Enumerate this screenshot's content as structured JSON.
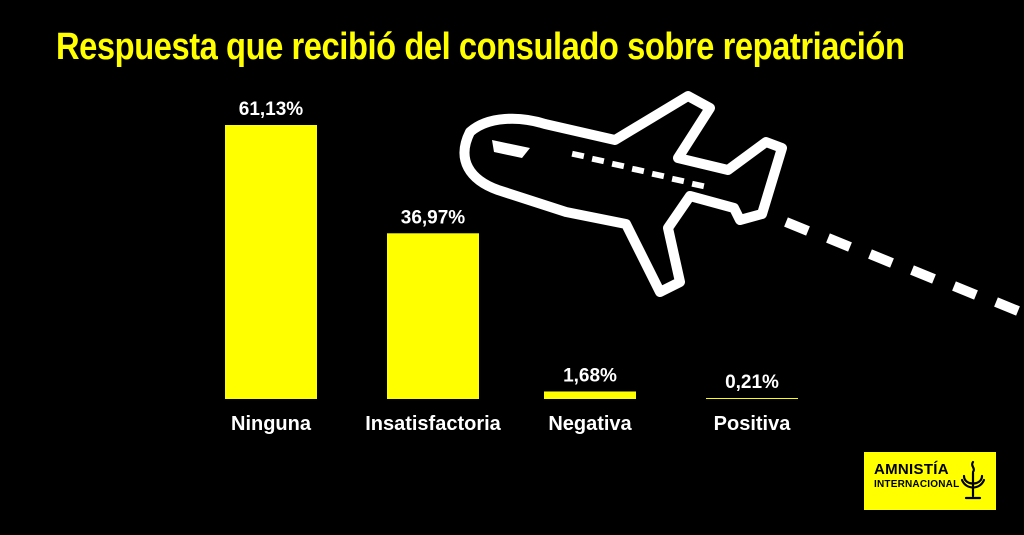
{
  "title": "Respuesta que recibió del consulado sobre repatriación",
  "colors": {
    "background": "#000000",
    "accent": "#FFFF00",
    "text": "#FFFFFF"
  },
  "icons": {
    "illustration": "airplane-icon",
    "logo_symbol": "candle-icon"
  },
  "chart_data": {
    "type": "bar",
    "title": "Respuesta que recibió del consulado sobre repatriación",
    "categories": [
      "Ninguna",
      "Insatisfactoria",
      "Negativa",
      "Positiva"
    ],
    "values": [
      61.13,
      36.97,
      1.68,
      0.21
    ],
    "value_labels": [
      "61,13%",
      "36,97%",
      "1,68%",
      "0,21%"
    ],
    "ylim": [
      0,
      61.13
    ],
    "grid": false,
    "axis_visible": false
  },
  "logo": {
    "line1": "AMNISTÍA",
    "line2": "INTERNACIONAL"
  }
}
